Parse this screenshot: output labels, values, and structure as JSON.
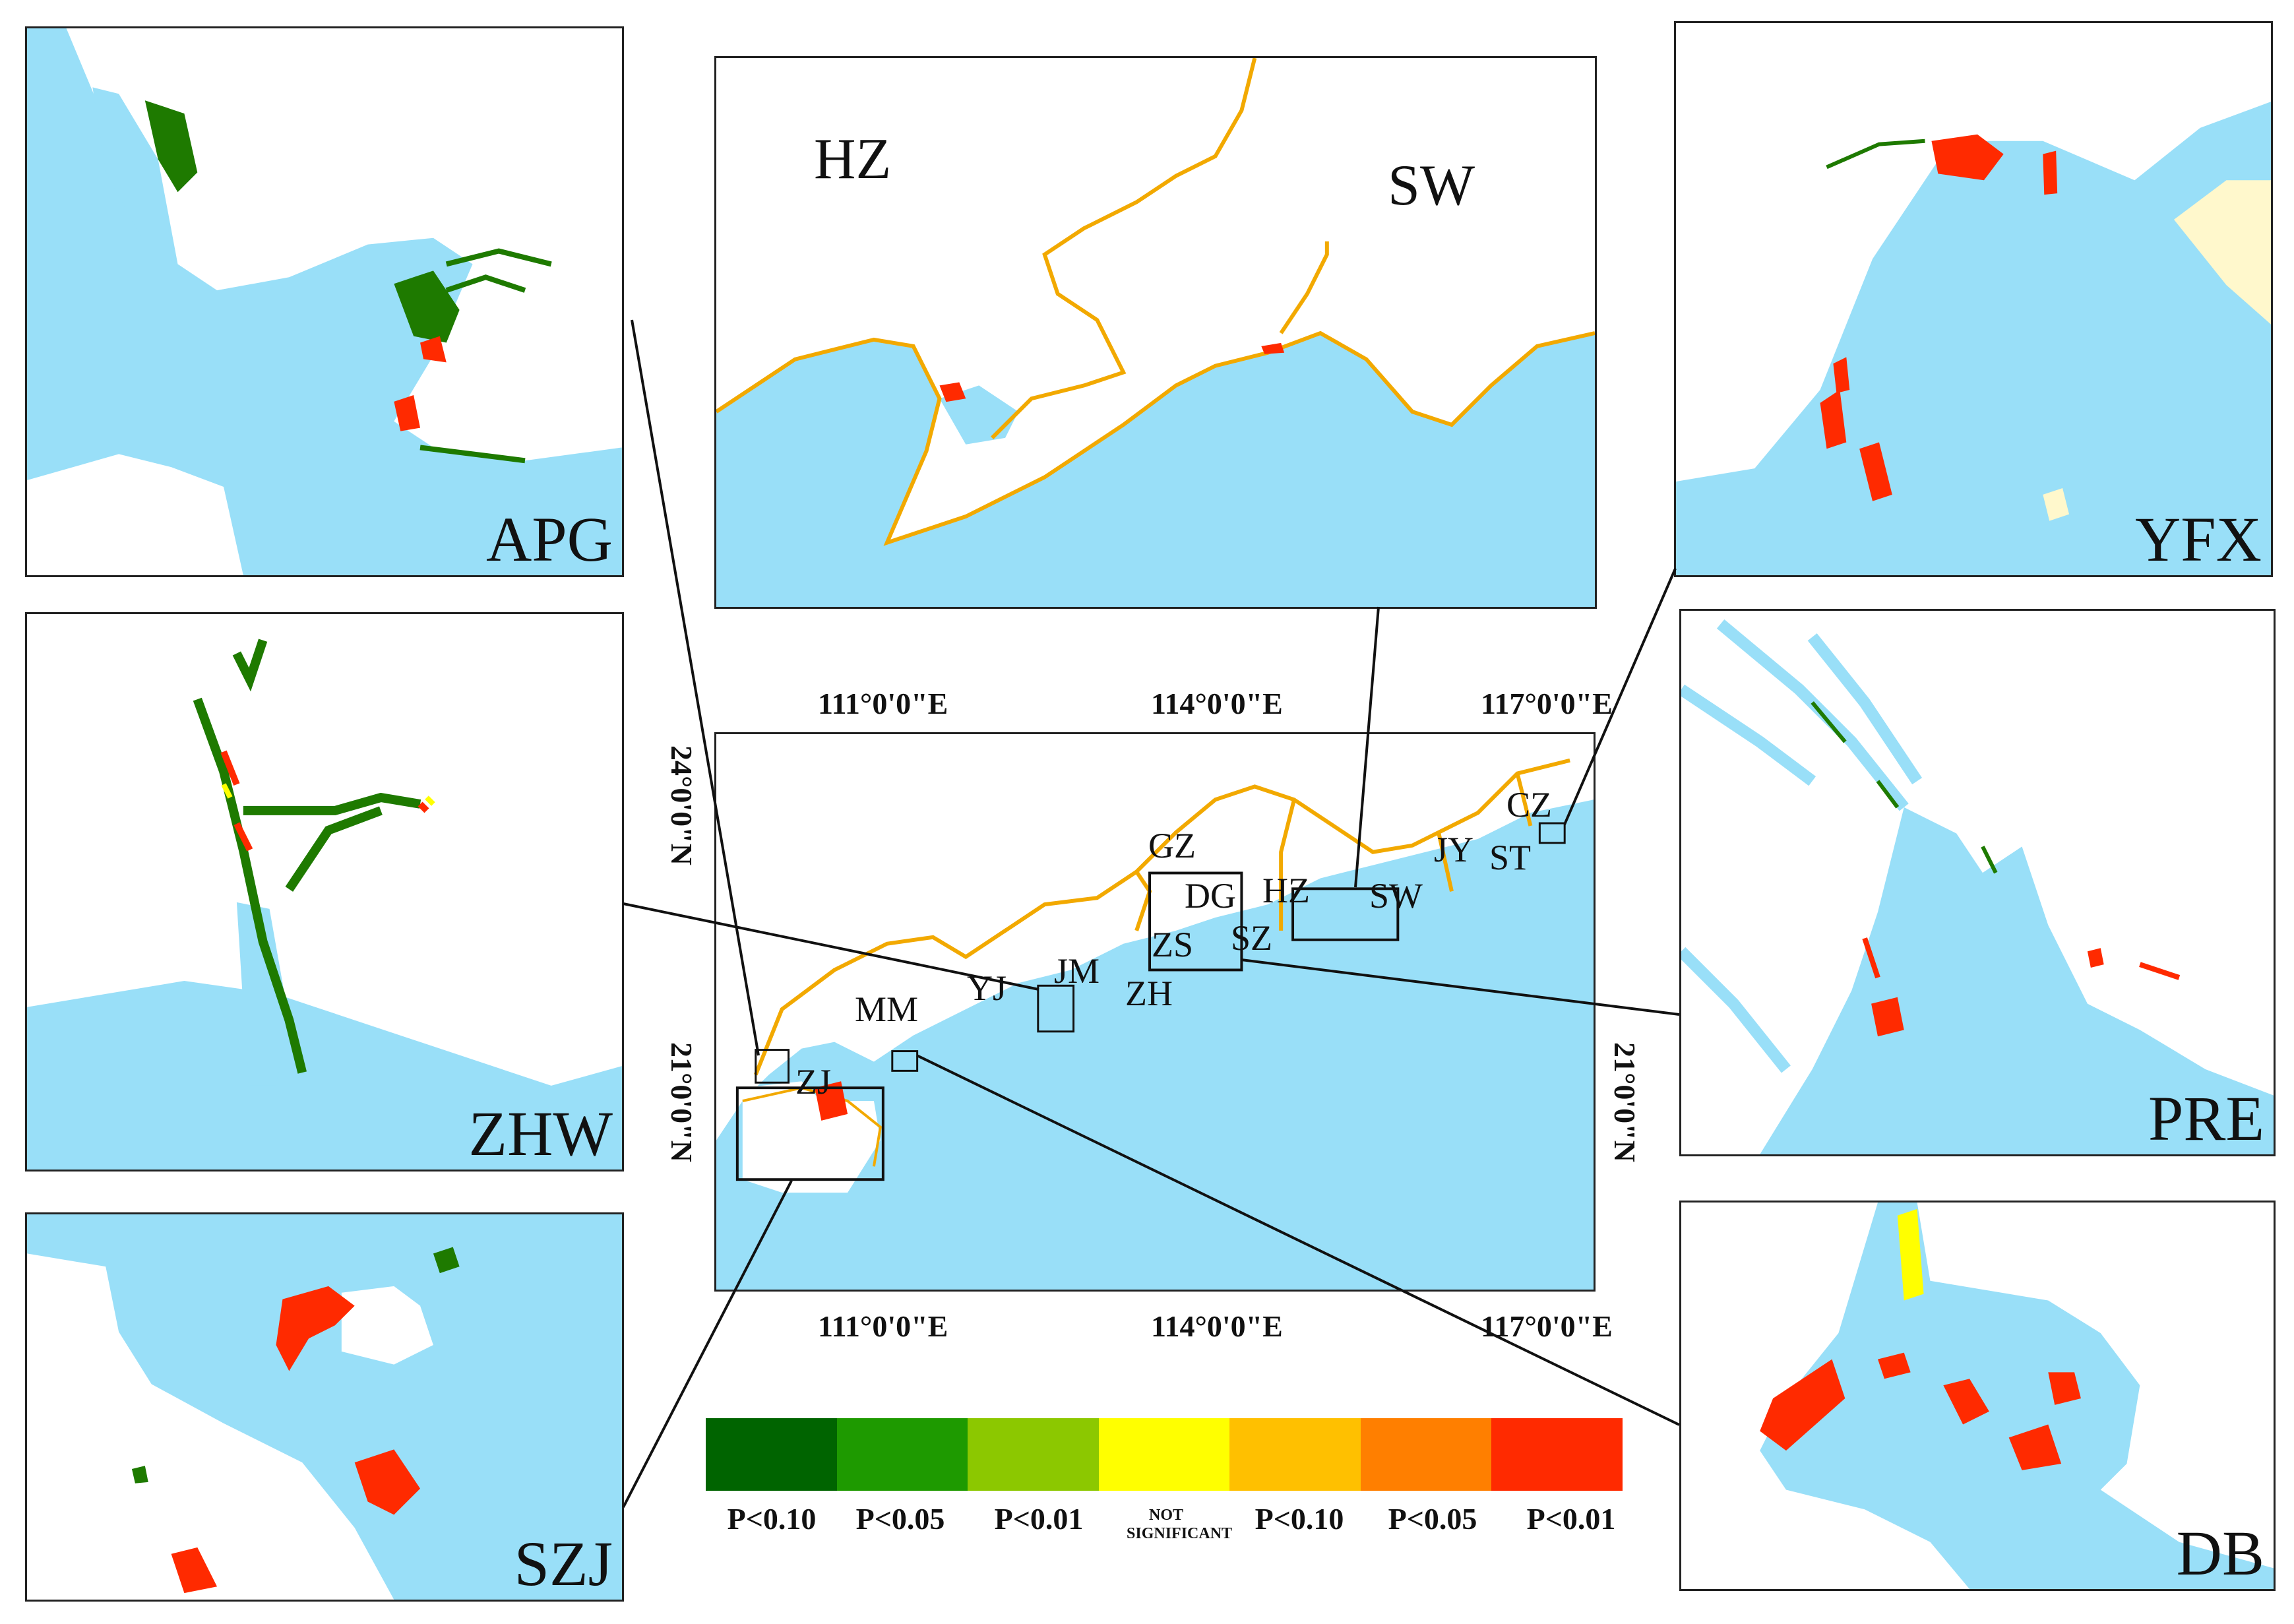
{
  "panels": {
    "apg": {
      "label": "APG"
    },
    "zhw": {
      "label": "ZHW"
    },
    "szj": {
      "label": "SZJ"
    },
    "hzsw": {
      "hz_label": "HZ",
      "sw_label": "SW"
    },
    "yfx": {
      "label": "YFX"
    },
    "pre": {
      "label": "PRE"
    },
    "db": {
      "label": "DB"
    }
  },
  "main_map": {
    "lon_top": [
      "111°0'0\"E",
      "114°0'0\"E",
      "117°0'0\"E"
    ],
    "lon_bottom": [
      "111°0'0\"E",
      "114°0'0\"E",
      "117°0'0\"E"
    ],
    "lat_left": [
      "24°0'0\"N",
      "21°0'0\"N"
    ],
    "lat_right": [
      "21°0'0\"N"
    ],
    "cities": {
      "gz": "GZ",
      "dg": "DG",
      "hz": "HZ",
      "sw": "SW",
      "jy": "JY",
      "st": "ST",
      "cz": "CZ",
      "zs": "ZS",
      "sz": "SZ",
      "jm": "JM",
      "zh": "ZH",
      "yj": "YJ",
      "mm": "MM",
      "zj": "ZJ"
    }
  },
  "legend": {
    "items": [
      {
        "label": "P<0.10",
        "color": "#006400"
      },
      {
        "label": "P<0.05",
        "color": "#1e9a00"
      },
      {
        "label": "P<0.01",
        "color": "#8cc800"
      },
      {
        "label": "NOT SIGNIFICANT",
        "color": "#ffff00"
      },
      {
        "label": "P<0.10",
        "color": "#ffc000"
      },
      {
        "label": "P<0.05",
        "color": "#ff7f00"
      },
      {
        "label": "P<0.01",
        "color": "#ff2a00"
      }
    ]
  },
  "colors": {
    "water": "#99dff8",
    "boundary": "#f2a900",
    "sand": "#fff8cc"
  }
}
